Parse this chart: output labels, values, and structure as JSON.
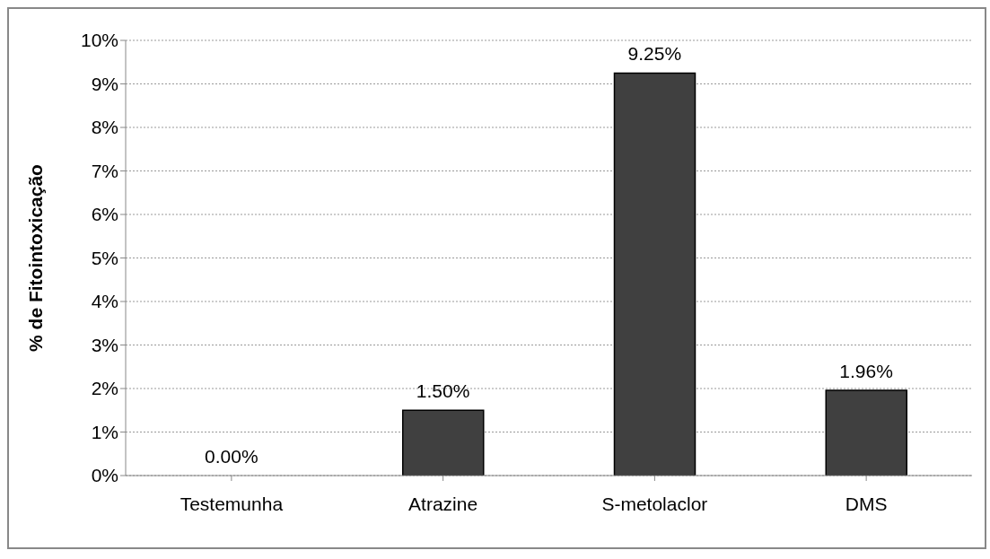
{
  "chart_data": {
    "type": "bar",
    "ylabel": "% de Fitointoxicação",
    "categories": [
      "Testemunha",
      "Atrazine",
      "S-metolaclor",
      "DMS"
    ],
    "values": [
      0,
      1.5,
      9.25,
      1.96
    ],
    "value_labels": [
      "0.00%",
      "1.50%",
      "9.25%",
      "1.96%"
    ],
    "color": "#404040",
    "ylim": [
      0,
      10
    ],
    "yticks": [
      {
        "value": 0,
        "label": "0%"
      },
      {
        "value": 1,
        "label": "1%"
      },
      {
        "value": 2,
        "label": "2%"
      },
      {
        "value": 3,
        "label": "3%"
      },
      {
        "value": 4,
        "label": "4%"
      },
      {
        "value": 5,
        "label": "5%"
      },
      {
        "value": 6,
        "label": "6%"
      },
      {
        "value": 7,
        "label": "7%"
      },
      {
        "value": 8,
        "label": "8%"
      },
      {
        "value": 9,
        "label": "9%"
      },
      {
        "value": 10,
        "label": "10%"
      }
    ],
    "grid": "y"
  }
}
